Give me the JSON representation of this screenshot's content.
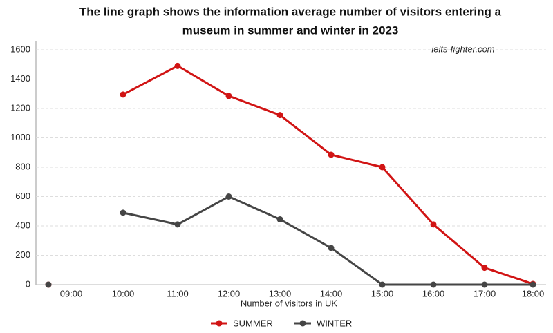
{
  "chart_data": {
    "type": "line",
    "title": [
      "The line graph shows the information average number of visitors entering a",
      "museum in summer and winter in 2023"
    ],
    "watermark": "ielts-fighter.com",
    "x_label": "Number of visitors in UK",
    "categories": [
      null,
      "09:00",
      "10:00",
      "11:00",
      "12:00",
      "13:00",
      "14:00",
      "15:00",
      "16:00",
      "17:00",
      "18:00"
    ],
    "series": [
      {
        "name": "SUMMER",
        "color": "#d11414",
        "values": [
          0,
          null,
          1295,
          1490,
          1285,
          1155,
          885,
          800,
          410,
          115,
          5
        ]
      },
      {
        "name": "WINTER",
        "color": "#454545",
        "values": [
          0,
          null,
          490,
          410,
          600,
          445,
          250,
          0,
          0,
          0,
          0
        ]
      }
    ],
    "ylim": [
      0,
      1600
    ],
    "yticks": [
      0,
      200,
      400,
      600,
      800,
      1000,
      1200,
      1400,
      1600
    ],
    "grid": true,
    "legend": "bottom"
  }
}
